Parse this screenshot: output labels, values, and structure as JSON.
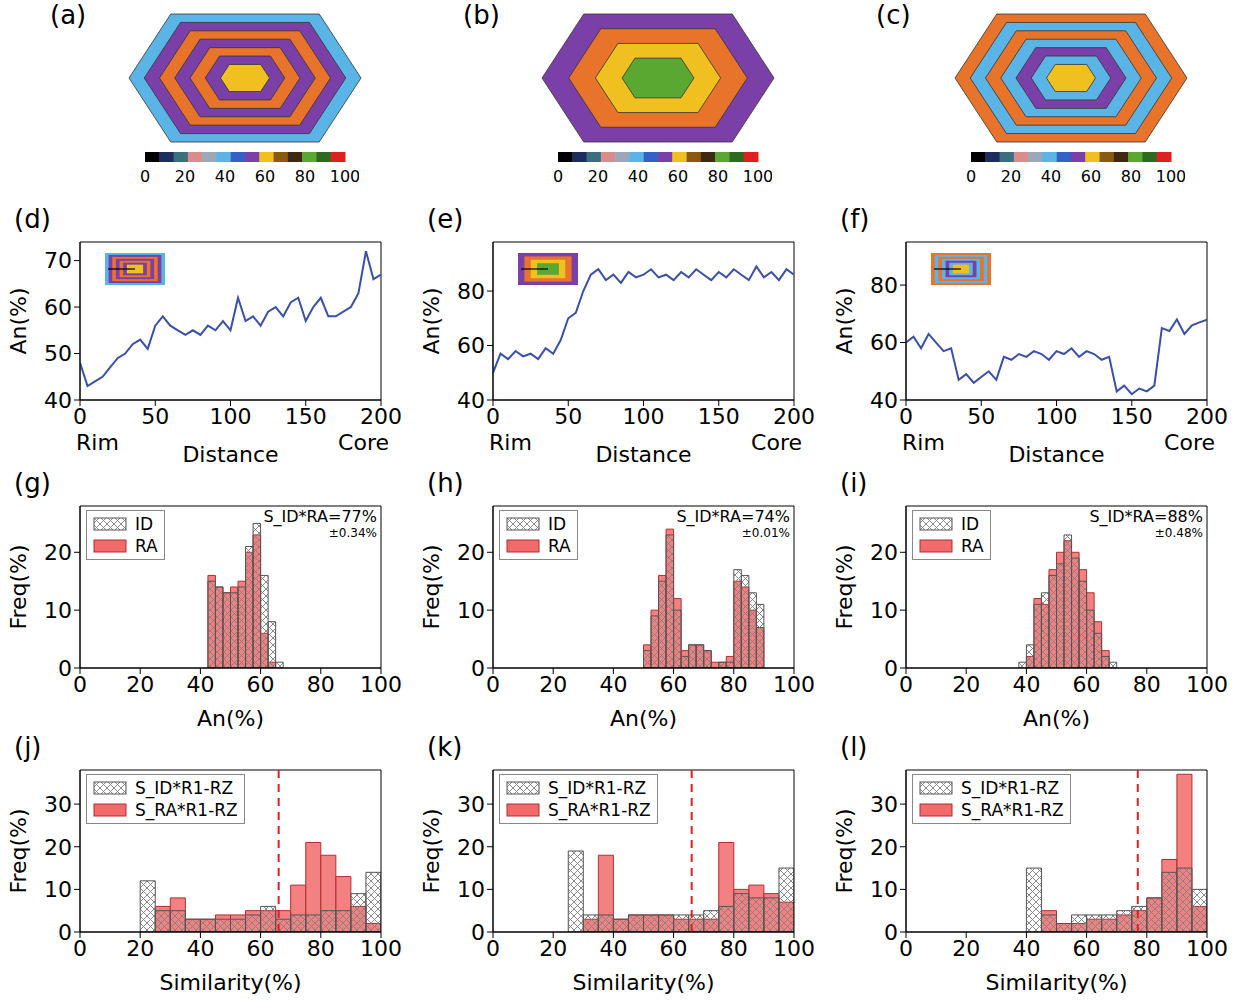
{
  "chart_data": [
    {
      "type": "image",
      "title": "(a)",
      "zones": [
        "#5ab4e6",
        "#7b3fa8",
        "#e8732a",
        "#7b3fa8",
        "#e8732a",
        "#7b3fa8",
        "#f0c020"
      ],
      "colorbar": {
        "range": [
          0,
          100
        ],
        "ticks": [
          0,
          20,
          40,
          60,
          80,
          100
        ],
        "colors": [
          "#000000",
          "#1c2d5e",
          "#3b6f80",
          "#d98c8c",
          "#9aa8b8",
          "#5ab4e6",
          "#3560c8",
          "#7b3fa8",
          "#f0c020",
          "#8a5a10",
          "#3d2a10",
          "#5aa832",
          "#2d6a20",
          "#e02020"
        ]
      }
    },
    {
      "type": "image",
      "title": "(b)",
      "zones": [
        "#7b3fa8",
        "#e8732a",
        "#f0c020",
        "#5aa832"
      ],
      "colorbar": {
        "range": [
          0,
          100
        ],
        "ticks": [
          0,
          20,
          40,
          60,
          80,
          100
        ],
        "colors": [
          "#000000",
          "#1c2d5e",
          "#3b6f80",
          "#d98c8c",
          "#9aa8b8",
          "#5ab4e6",
          "#3560c8",
          "#7b3fa8",
          "#f0c020",
          "#8a5a10",
          "#3d2a10",
          "#5aa832",
          "#2d6a20",
          "#e02020"
        ]
      }
    },
    {
      "type": "image",
      "title": "(c)",
      "zones": [
        "#e8732a",
        "#5ab4e6",
        "#e8732a",
        "#5ab4e6",
        "#7b3fa8",
        "#5ab4e6",
        "#f0c020"
      ],
      "colorbar": {
        "range": [
          0,
          100
        ],
        "ticks": [
          0,
          20,
          40,
          60,
          80,
          100
        ],
        "colors": [
          "#000000",
          "#1c2d5e",
          "#3b6f80",
          "#d98c8c",
          "#9aa8b8",
          "#5ab4e6",
          "#3560c8",
          "#7b3fa8",
          "#f0c020",
          "#8a5a10",
          "#3d2a10",
          "#5aa832",
          "#2d6a20",
          "#e02020"
        ]
      }
    },
    {
      "type": "line",
      "title": "(d)",
      "xlabel": "Distance",
      "ylabel": "An(%)",
      "annotations": [
        "Rim",
        "Core"
      ],
      "color": "#3a50a8",
      "xlim": [
        0,
        200
      ],
      "xticks": [
        0,
        50,
        100,
        150,
        200
      ],
      "ylim": [
        40,
        74
      ],
      "yticks": [
        40,
        50,
        60,
        70
      ],
      "x": [
        0,
        5,
        10,
        15,
        20,
        25,
        30,
        35,
        40,
        45,
        50,
        55,
        60,
        65,
        70,
        75,
        80,
        85,
        90,
        95,
        100,
        105,
        110,
        115,
        120,
        125,
        130,
        135,
        140,
        145,
        150,
        155,
        160,
        165,
        170,
        175,
        180,
        185,
        190,
        195,
        200
      ],
      "values": [
        48,
        43,
        44,
        45,
        47,
        49,
        50,
        52,
        53,
        51,
        56,
        58,
        56,
        55,
        54,
        55,
        54,
        56,
        55,
        57,
        55,
        62,
        57,
        58,
        56,
        59,
        60,
        58,
        61,
        62,
        57,
        60,
        62,
        58,
        58,
        59,
        60,
        63,
        72,
        66,
        67
      ]
    },
    {
      "type": "line",
      "title": "(e)",
      "xlabel": "Distance",
      "ylabel": "An(%)",
      "annotations": [
        "Rim",
        "Core"
      ],
      "color": "#3a50a8",
      "xlim": [
        0,
        200
      ],
      "xticks": [
        0,
        50,
        100,
        150,
        200
      ],
      "ylim": [
        40,
        98
      ],
      "yticks": [
        40,
        60,
        80
      ],
      "x": [
        0,
        5,
        10,
        15,
        20,
        25,
        30,
        35,
        40,
        45,
        50,
        55,
        60,
        65,
        70,
        75,
        80,
        85,
        90,
        95,
        100,
        105,
        110,
        115,
        120,
        125,
        130,
        135,
        140,
        145,
        150,
        155,
        160,
        165,
        170,
        175,
        180,
        185,
        190,
        195,
        200
      ],
      "values": [
        50,
        57,
        55,
        58,
        56,
        57,
        55,
        59,
        57,
        62,
        70,
        72,
        80,
        86,
        88,
        84,
        86,
        83,
        87,
        85,
        86,
        88,
        85,
        86,
        84,
        87,
        85,
        88,
        86,
        84,
        87,
        85,
        88,
        86,
        84,
        89,
        85,
        87,
        84,
        88,
        86
      ]
    },
    {
      "type": "line",
      "title": "(f)",
      "xlabel": "Distance",
      "ylabel": "An(%)",
      "annotations": [
        "Rim",
        "Core"
      ],
      "color": "#3a50a8",
      "xlim": [
        0,
        200
      ],
      "xticks": [
        0,
        50,
        100,
        150,
        200
      ],
      "ylim": [
        40,
        95
      ],
      "yticks": [
        40,
        60,
        80
      ],
      "x": [
        0,
        5,
        10,
        15,
        20,
        25,
        30,
        35,
        40,
        45,
        50,
        55,
        60,
        65,
        70,
        75,
        80,
        85,
        90,
        95,
        100,
        105,
        110,
        115,
        120,
        125,
        130,
        135,
        140,
        145,
        150,
        155,
        160,
        165,
        170,
        175,
        180,
        185,
        190,
        195,
        200
      ],
      "values": [
        60,
        62,
        58,
        63,
        60,
        57,
        58,
        47,
        49,
        46,
        48,
        50,
        47,
        55,
        54,
        56,
        55,
        57,
        56,
        54,
        57,
        56,
        58,
        55,
        57,
        56,
        54,
        55,
        43,
        45,
        42,
        44,
        43,
        45,
        65,
        64,
        68,
        63,
        66,
        67,
        68
      ]
    },
    {
      "type": "histogram",
      "title": "(g)",
      "xlabel": "An(%)",
      "ylabel": "Freq(%)",
      "legend": "upper left",
      "annotations": [
        "S_ID*RA=77%",
        "±0.34%"
      ],
      "xlim": [
        0,
        100
      ],
      "xticks": [
        0,
        20,
        40,
        60,
        80,
        100
      ],
      "ylim": [
        0,
        28
      ],
      "yticks": [
        0,
        10,
        20
      ],
      "bins": [
        42.5,
        45,
        47.5,
        50,
        52.5,
        55,
        57.5,
        60,
        62.5,
        65,
        67.5
      ],
      "series": [
        {
          "name": "ID",
          "color": "#808080",
          "values": [
            15,
            14,
            13,
            13,
            14,
            21,
            25,
            16,
            8,
            1
          ]
        },
        {
          "name": "RA",
          "color": "#f26b6b",
          "values": [
            16,
            14,
            13,
            14,
            15,
            20,
            23,
            6,
            1,
            0
          ]
        }
      ]
    },
    {
      "type": "histogram",
      "title": "(h)",
      "xlabel": "An(%)",
      "ylabel": "Freq(%)",
      "legend": "upper left",
      "annotations": [
        "S_ID*RA=74%",
        "±0.01%"
      ],
      "xlim": [
        0,
        100
      ],
      "xticks": [
        0,
        20,
        40,
        60,
        80,
        100
      ],
      "ylim": [
        0,
        28
      ],
      "yticks": [
        0,
        10,
        20
      ],
      "bins": [
        50,
        52.5,
        55,
        57.5,
        60,
        62.5,
        65,
        67.5,
        70,
        72.5,
        75,
        77.5,
        80,
        82.5,
        85,
        87.5,
        90
      ],
      "series": [
        {
          "name": "ID",
          "color": "#808080",
          "values": [
            3,
            9,
            15,
            23,
            10,
            2,
            4,
            4,
            3,
            0,
            1,
            1,
            17,
            16,
            13,
            11
          ]
        },
        {
          "name": "RA",
          "color": "#f26b6b",
          "values": [
            4,
            10,
            16,
            24,
            12,
            3,
            4,
            4,
            3,
            1,
            1,
            2,
            15,
            14,
            10,
            7
          ]
        }
      ]
    },
    {
      "type": "histogram",
      "title": "(i)",
      "xlabel": "An(%)",
      "ylabel": "Freq(%)",
      "legend": "upper left",
      "annotations": [
        "S_ID*RA=88%",
        "±0.48%"
      ],
      "xlim": [
        0,
        100
      ],
      "xticks": [
        0,
        20,
        40,
        60,
        80,
        100
      ],
      "ylim": [
        0,
        28
      ],
      "yticks": [
        0,
        10,
        20
      ],
      "bins": [
        37.5,
        40,
        42.5,
        45,
        47.5,
        50,
        52.5,
        55,
        57.5,
        60,
        62.5,
        65,
        67.5,
        70
      ],
      "series": [
        {
          "name": "ID",
          "color": "#808080",
          "values": [
            1,
            4,
            11,
            13,
            16,
            18,
            23,
            19,
            15,
            10,
            6,
            2,
            1
          ]
        },
        {
          "name": "RA",
          "color": "#f26b6b",
          "values": [
            0,
            2,
            12,
            11,
            17,
            20,
            22,
            20,
            17,
            13,
            8,
            3,
            0
          ]
        }
      ]
    },
    {
      "type": "histogram",
      "title": "(j)",
      "xlabel": "Similarity(%)",
      "ylabel": "Freq(%)",
      "legend": "upper left",
      "threshold": {
        "value": 66,
        "color": "#e02020",
        "line_style": "dashed"
      },
      "xlim": [
        0,
        100
      ],
      "xticks": [
        0,
        20,
        40,
        60,
        80,
        100
      ],
      "ylim": [
        0,
        38
      ],
      "yticks": [
        0,
        10,
        20,
        30
      ],
      "bins": [
        20,
        25,
        30,
        35,
        40,
        45,
        50,
        55,
        60,
        65,
        70,
        75,
        80,
        85,
        90,
        95,
        100
      ],
      "series": [
        {
          "name": "S_ID*R1-RZ",
          "color": "#808080",
          "values": [
            12,
            5,
            5,
            3,
            3,
            3,
            3,
            4,
            6,
            3,
            4,
            4,
            5,
            5,
            9,
            14
          ]
        },
        {
          "name": "S_RA*R1-RZ",
          "color": "#f26b6b",
          "values": [
            0,
            6,
            8,
            3,
            3,
            4,
            4,
            5,
            5,
            5,
            11,
            21,
            18,
            13,
            6,
            2
          ]
        }
      ]
    },
    {
      "type": "histogram",
      "title": "(k)",
      "xlabel": "Similarity(%)",
      "ylabel": "Freq(%)",
      "legend": "upper left",
      "threshold": {
        "value": 66,
        "color": "#e02020",
        "line_style": "dashed"
      },
      "xlim": [
        0,
        100
      ],
      "xticks": [
        0,
        20,
        40,
        60,
        80,
        100
      ],
      "ylim": [
        0,
        38
      ],
      "yticks": [
        0,
        10,
        20,
        30
      ],
      "bins": [
        20,
        25,
        30,
        35,
        40,
        45,
        50,
        55,
        60,
        65,
        70,
        75,
        80,
        85,
        90,
        95,
        100
      ],
      "series": [
        {
          "name": "S_ID*R1-RZ",
          "color": "#808080",
          "values": [
            0,
            19,
            4,
            4,
            3,
            4,
            4,
            4,
            4,
            4,
            5,
            6,
            9,
            8,
            8,
            15
          ]
        },
        {
          "name": "S_RA*R1-RZ",
          "color": "#f26b6b",
          "values": [
            0,
            0,
            3,
            18,
            3,
            4,
            4,
            4,
            3,
            3,
            3,
            21,
            10,
            11,
            9,
            7
          ]
        }
      ]
    },
    {
      "type": "histogram",
      "title": "(l)",
      "xlabel": "Similarity(%)",
      "ylabel": "Freq(%)",
      "legend": "upper left",
      "threshold": {
        "value": 77,
        "color": "#e02020",
        "line_style": "dashed"
      },
      "xlim": [
        0,
        100
      ],
      "xticks": [
        0,
        20,
        40,
        60,
        80,
        100
      ],
      "ylim": [
        0,
        38
      ],
      "yticks": [
        0,
        10,
        20,
        30
      ],
      "bins": [
        20,
        25,
        30,
        35,
        40,
        45,
        50,
        55,
        60,
        65,
        70,
        75,
        80,
        85,
        90,
        95,
        100
      ],
      "series": [
        {
          "name": "S_ID*R1-RZ",
          "color": "#808080",
          "values": [
            0,
            0,
            0,
            0,
            15,
            4,
            2,
            4,
            4,
            4,
            5,
            6,
            8,
            14,
            15,
            10
          ]
        },
        {
          "name": "S_RA*R1-RZ",
          "color": "#f26b6b",
          "values": [
            0,
            0,
            0,
            0,
            0,
            5,
            2,
            2,
            3,
            3,
            4,
            5,
            8,
            17,
            37,
            6
          ]
        }
      ]
    }
  ]
}
